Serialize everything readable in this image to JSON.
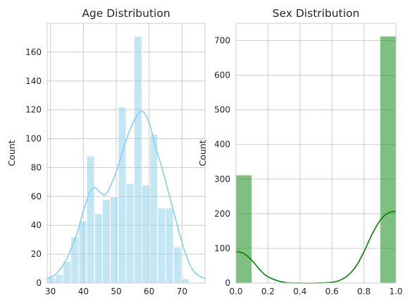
{
  "chart_data": [
    {
      "type": "bar",
      "title": "Age Distribution",
      "xlabel": "",
      "ylabel": "Count",
      "xlim": [
        29,
        77
      ],
      "ylim": [
        0,
        180
      ],
      "xticks": [
        30,
        40,
        50,
        60,
        70
      ],
      "yticks": [
        0,
        20,
        40,
        60,
        80,
        100,
        120,
        140,
        160
      ],
      "grid": true,
      "bar_color": "#87CEEB",
      "kde_color": "#87CEEB",
      "bins": [
        {
          "x0": 29.0,
          "x1": 31.4,
          "count": 4
        },
        {
          "x0": 31.4,
          "x1": 33.8,
          "count": 6
        },
        {
          "x0": 33.8,
          "x1": 36.2,
          "count": 15
        },
        {
          "x0": 36.2,
          "x1": 38.6,
          "count": 32
        },
        {
          "x0": 38.6,
          "x1": 41.0,
          "count": 43
        },
        {
          "x0": 41.0,
          "x1": 43.4,
          "count": 88
        },
        {
          "x0": 43.4,
          "x1": 45.8,
          "count": 48
        },
        {
          "x0": 45.8,
          "x1": 48.2,
          "count": 58
        },
        {
          "x0": 48.2,
          "x1": 50.6,
          "count": 60
        },
        {
          "x0": 50.6,
          "x1": 53.0,
          "count": 122
        },
        {
          "x0": 53.0,
          "x1": 55.4,
          "count": 69
        },
        {
          "x0": 55.4,
          "x1": 57.8,
          "count": 171
        },
        {
          "x0": 57.8,
          "x1": 60.2,
          "count": 68
        },
        {
          "x0": 60.2,
          "x1": 62.6,
          "count": 103
        },
        {
          "x0": 62.6,
          "x1": 65.0,
          "count": 52
        },
        {
          "x0": 65.0,
          "x1": 67.4,
          "count": 52
        },
        {
          "x0": 67.4,
          "x1": 69.8,
          "count": 25
        },
        {
          "x0": 69.8,
          "x1": 72.2,
          "count": 3
        }
      ],
      "kde": {
        "x": [
          29,
          32,
          35,
          38,
          40,
          42,
          43.5,
          45,
          47,
          50,
          52,
          54,
          56,
          58,
          60,
          62,
          64,
          66,
          68,
          70,
          72,
          74,
          77
        ],
        "y": [
          3,
          7,
          17,
          34,
          50,
          63,
          66,
          63,
          62,
          77,
          92,
          105,
          115,
          119,
          111,
          94,
          79,
          62,
          45,
          28,
          15,
          7,
          3
        ]
      }
    },
    {
      "type": "bar",
      "title": "Sex Distribution",
      "xlabel": "",
      "ylabel": "Count",
      "xlim": [
        0,
        1
      ],
      "ylim": [
        0,
        750
      ],
      "xticks": [
        "0.0",
        "0.2",
        "0.4",
        "0.6",
        "0.8",
        "1.0"
      ],
      "yticks": [
        0,
        100,
        200,
        300,
        400,
        500,
        600,
        700
      ],
      "grid": true,
      "bar_color": "#008000",
      "kde_color": "#008000",
      "bins": [
        {
          "x0": 0.0,
          "x1": 0.1,
          "count": 312
        },
        {
          "x0": 0.9,
          "x1": 1.0,
          "count": 713
        }
      ],
      "kde": {
        "x": [
          0,
          0.05,
          0.1,
          0.15,
          0.2,
          0.3,
          0.4,
          0.5,
          0.6,
          0.65,
          0.7,
          0.75,
          0.8,
          0.85,
          0.9,
          0.95,
          1.0
        ],
        "y": [
          91,
          85,
          65,
          38,
          18,
          2,
          0,
          0,
          2,
          8,
          22,
          48,
          90,
          140,
          180,
          202,
          207
        ]
      }
    }
  ]
}
